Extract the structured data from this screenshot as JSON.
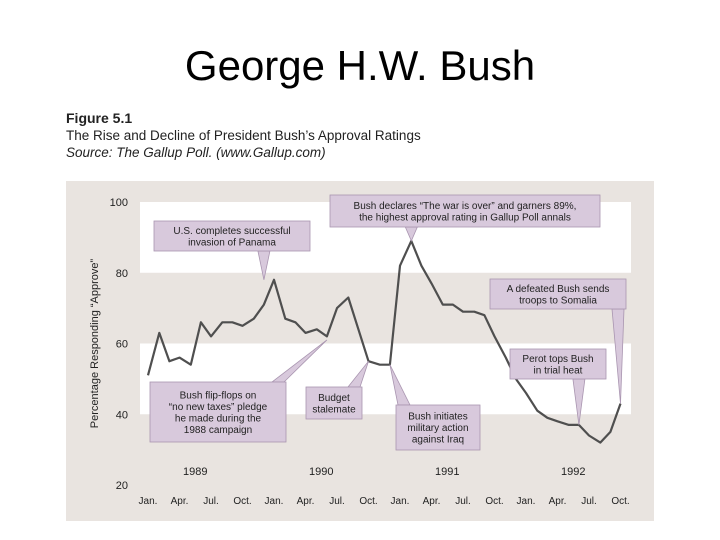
{
  "slide": {
    "title": "George H.W. Bush"
  },
  "figure": {
    "number": "Figure 5.1",
    "caption": "The Rise and Decline of President Bush’s Approval Ratings",
    "source": "Source: The Gallup Poll. (www.Gallup.com)"
  },
  "colors": {
    "panel": "#e9e4e0",
    "band": "#ffffff",
    "line": "#4f4f4f",
    "callout": "#d8c9dc",
    "callout_border": "#a995b0"
  },
  "chart_data": {
    "type": "line",
    "title": "",
    "ylabel": "Percentage Responding “Approve”",
    "xlabel": "",
    "ylim": [
      20,
      100
    ],
    "yticks": [
      20,
      40,
      60,
      80,
      100
    ],
    "grid": "alternating horizontal bands",
    "month_ticks": [
      "Jan.",
      "Apr.",
      "Jul.",
      "Oct.",
      "Jan.",
      "Apr.",
      "Jul.",
      "Oct.",
      "Jan.",
      "Apr.",
      "Jul.",
      "Oct.",
      "Jan.",
      "Apr.",
      "Jul.",
      "Oct."
    ],
    "year_labels": [
      "1989",
      "1990",
      "1991",
      "1992"
    ],
    "x_start": "Jan. 1989",
    "x_end": "Oct. 1992",
    "series": [
      {
        "x": [
          1989.04,
          1989.13,
          1989.21,
          1989.29,
          1989.38,
          1989.46,
          1989.54,
          1989.63,
          1989.71,
          1989.79,
          1989.88,
          1989.96,
          1990.04,
          1990.13,
          1990.21,
          1990.29,
          1990.38,
          1990.46,
          1990.54,
          1990.63,
          1990.71,
          1990.79,
          1990.88,
          1990.96,
          1991.04,
          1991.13,
          1991.21,
          1991.29,
          1991.38,
          1991.46,
          1991.54,
          1991.63,
          1991.71,
          1991.79,
          1991.88,
          1991.96,
          1992.04,
          1992.13,
          1992.21,
          1992.29,
          1992.38,
          1992.46,
          1992.54,
          1992.63,
          1992.71,
          1992.79
        ],
        "values": [
          51,
          63,
          55,
          56,
          54,
          66,
          62,
          66,
          66,
          65,
          67,
          71,
          78,
          67,
          66,
          63,
          64,
          62,
          70,
          73,
          64,
          55,
          54,
          54,
          82,
          89,
          82,
          77,
          71,
          71,
          69,
          69,
          68,
          62,
          56,
          50,
          46,
          41,
          39,
          38,
          37,
          37,
          34,
          32,
          35,
          43
        ]
      }
    ],
    "annotations": [
      "U.S. completes successful invasion of Panama",
      "Bush declares “The war is over” and garners 89%, the highest approval rating in Gallup Poll annals",
      "A defeated Bush sends troops to Somalia",
      "Perot tops Bush in trial heat",
      "Bush flip-flops on “no new taxes” pledge he made during the 1988 campaign",
      "Budget stalemate",
      "Bush initiates military action against Iraq"
    ]
  }
}
